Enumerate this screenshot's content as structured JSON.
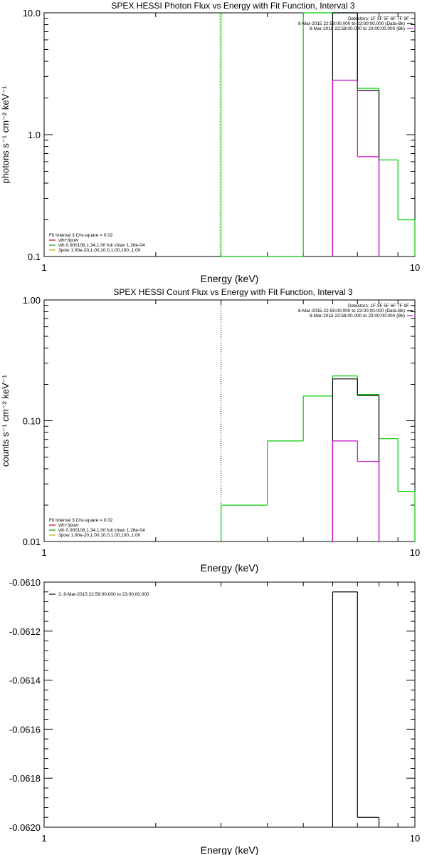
{
  "chart_data": [
    {
      "type": "line",
      "title": "SPEX HESSI Photon Flux vs Energy with Fit Function, Interval 3",
      "xlabel": "Energy (keV)",
      "ylabel": "photons s⁻¹ cm⁻² keV⁻¹",
      "xlog": true,
      "ylog": true,
      "xlim": [
        1,
        10
      ],
      "ylim": [
        0.1,
        10
      ],
      "x_ticks": [
        {
          "v": 1,
          "label": "1"
        },
        {
          "v": 10,
          "label": "10"
        }
      ],
      "y_ticks": [
        {
          "v": 0.1,
          "label": "0.1"
        },
        {
          "v": 1,
          "label": "1.0"
        },
        {
          "v": 10,
          "label": "10.0"
        }
      ],
      "vline": {
        "x": 3,
        "color": "#00cc00",
        "dash": false
      },
      "legend_right": [
        {
          "text": "Detectors: 1F 3F 5F 6F 7F 9F",
          "color": null
        },
        {
          "text": "8-Mar-2015 22:59:00.000 to 23:00:00.000 (Data-Bk)",
          "color": "#000000"
        },
        {
          "text": "8-Mar-2015 22:58:00.000 to 23:00:00.000 (Bk)",
          "color": "#cc00cc"
        }
      ],
      "legend_left": [
        {
          "text": "Fit Interval 3   Chi-square = 0.02",
          "color": null
        },
        {
          "text": "vth+3pow",
          "color": "#cc0000"
        },
        {
          "text": "vth 0.000108,1.34,1.00  full chian 1.26e-04",
          "color": "#00aa00"
        },
        {
          "text": "3pow 1.00e-20,1.00,10.0,1.00,100.,1.00",
          "color": "#ccaa00"
        }
      ],
      "series": [
        {
          "color": "#00cc00",
          "steps": [
            [
              3,
              4,
              0.1
            ],
            [
              4,
              5,
              0.1
            ],
            [
              5,
              6,
              10.0
            ],
            [
              6,
              7,
              10.0
            ],
            [
              7,
              8,
              2.4
            ],
            [
              8,
              9,
              0.62
            ],
            [
              9,
              10,
              0.2
            ]
          ]
        },
        {
          "color": "#000000",
          "steps": [
            [
              6,
              7,
              10.0
            ],
            [
              7,
              8,
              2.3
            ],
            [
              8,
              8.05,
              0.1
            ]
          ]
        },
        {
          "color": "#cc00cc",
          "steps": [
            [
              6,
              7,
              2.8
            ],
            [
              7,
              8,
              0.66
            ],
            [
              8,
              8.05,
              0.1
            ]
          ]
        }
      ]
    },
    {
      "type": "line",
      "title": "SPEX HESSI Count Flux vs Energy with Fit Function, Interval 3",
      "xlabel": "Energy (keV)",
      "ylabel": "counts s⁻¹ cm⁻² keV⁻¹",
      "xlog": true,
      "ylog": true,
      "xlim": [
        1,
        10
      ],
      "ylim": [
        0.01,
        1
      ],
      "x_ticks": [
        {
          "v": 1,
          "label": "1"
        },
        {
          "v": 10,
          "label": "10"
        }
      ],
      "y_ticks": [
        {
          "v": 0.01,
          "label": "0.01"
        },
        {
          "v": 0.1,
          "label": "0.10"
        },
        {
          "v": 1,
          "label": "1.00"
        }
      ],
      "vline": {
        "x": 3,
        "color": "#000000",
        "dash": true
      },
      "legend_right": [
        {
          "text": "Detectors: 1F 3F 5F 6F 7F 9F",
          "color": null
        },
        {
          "text": "8-Mar-2015 22:59:00.000 to 23:00:00.000 (Data-Bk)",
          "color": "#000000"
        },
        {
          "text": "8-Mar-2015 22:58:00.000 to 23:00:00.000 (Bk)",
          "color": "#cc00cc"
        }
      ],
      "legend_left": [
        {
          "text": "Fit Interval 3   Chi-square = 0.02",
          "color": null
        },
        {
          "text": "vth+3pow",
          "color": "#cc0000"
        },
        {
          "text": "vth 0.000108,1.34,1.00  full chian 1.26e-04",
          "color": "#00aa00"
        },
        {
          "text": "3pow 1.00e-20,1.00,10.0,1.00,100.,1.00",
          "color": "#ccaa00"
        }
      ],
      "series": [
        {
          "color": "#00cc00",
          "steps": [
            [
              3,
              4,
              0.02
            ],
            [
              4,
              5,
              0.068
            ],
            [
              5,
              6,
              0.16
            ],
            [
              6,
              7,
              0.235
            ],
            [
              7,
              8,
              0.165
            ],
            [
              8,
              9,
              0.071
            ],
            [
              9,
              10,
              0.026
            ]
          ]
        },
        {
          "color": "#000000",
          "steps": [
            [
              6,
              7,
              0.222
            ],
            [
              7,
              8,
              0.162
            ],
            [
              8,
              8.05,
              0.01
            ]
          ]
        },
        {
          "color": "#cc00cc",
          "steps": [
            [
              6,
              7,
              0.068
            ],
            [
              7,
              8,
              0.046
            ],
            [
              8,
              8.05,
              0.01
            ]
          ]
        }
      ]
    },
    {
      "type": "line",
      "title": "",
      "xlabel": "Energy (keV)",
      "ylabel": "",
      "xlog": true,
      "ylog": false,
      "xlim": [
        1,
        10
      ],
      "ylim": [
        -0.062,
        -0.061
      ],
      "x_ticks": [
        {
          "v": 1,
          "label": "1"
        },
        {
          "v": 10,
          "label": "10"
        }
      ],
      "y_ticks": [
        {
          "v": -0.061,
          "label": "-0.0610"
        },
        {
          "v": -0.0612,
          "label": "-0.0612"
        },
        {
          "v": -0.0614,
          "label": "-0.0614"
        },
        {
          "v": -0.0616,
          "label": "-0.0616"
        },
        {
          "v": -0.0618,
          "label": "-0.0618"
        },
        {
          "v": -0.062,
          "label": "-0.0620"
        }
      ],
      "vline": null,
      "legend_right": [],
      "legend_left": [
        {
          "text": "3.  8-Mar-2015 22:59:00.000 to 23:00:00.000",
          "color": "#000000"
        }
      ],
      "series": [
        {
          "color": "#000000",
          "steps": [
            [
              6,
              7,
              -0.06104
            ],
            [
              7,
              8,
              -0.06196
            ]
          ]
        }
      ]
    }
  ]
}
